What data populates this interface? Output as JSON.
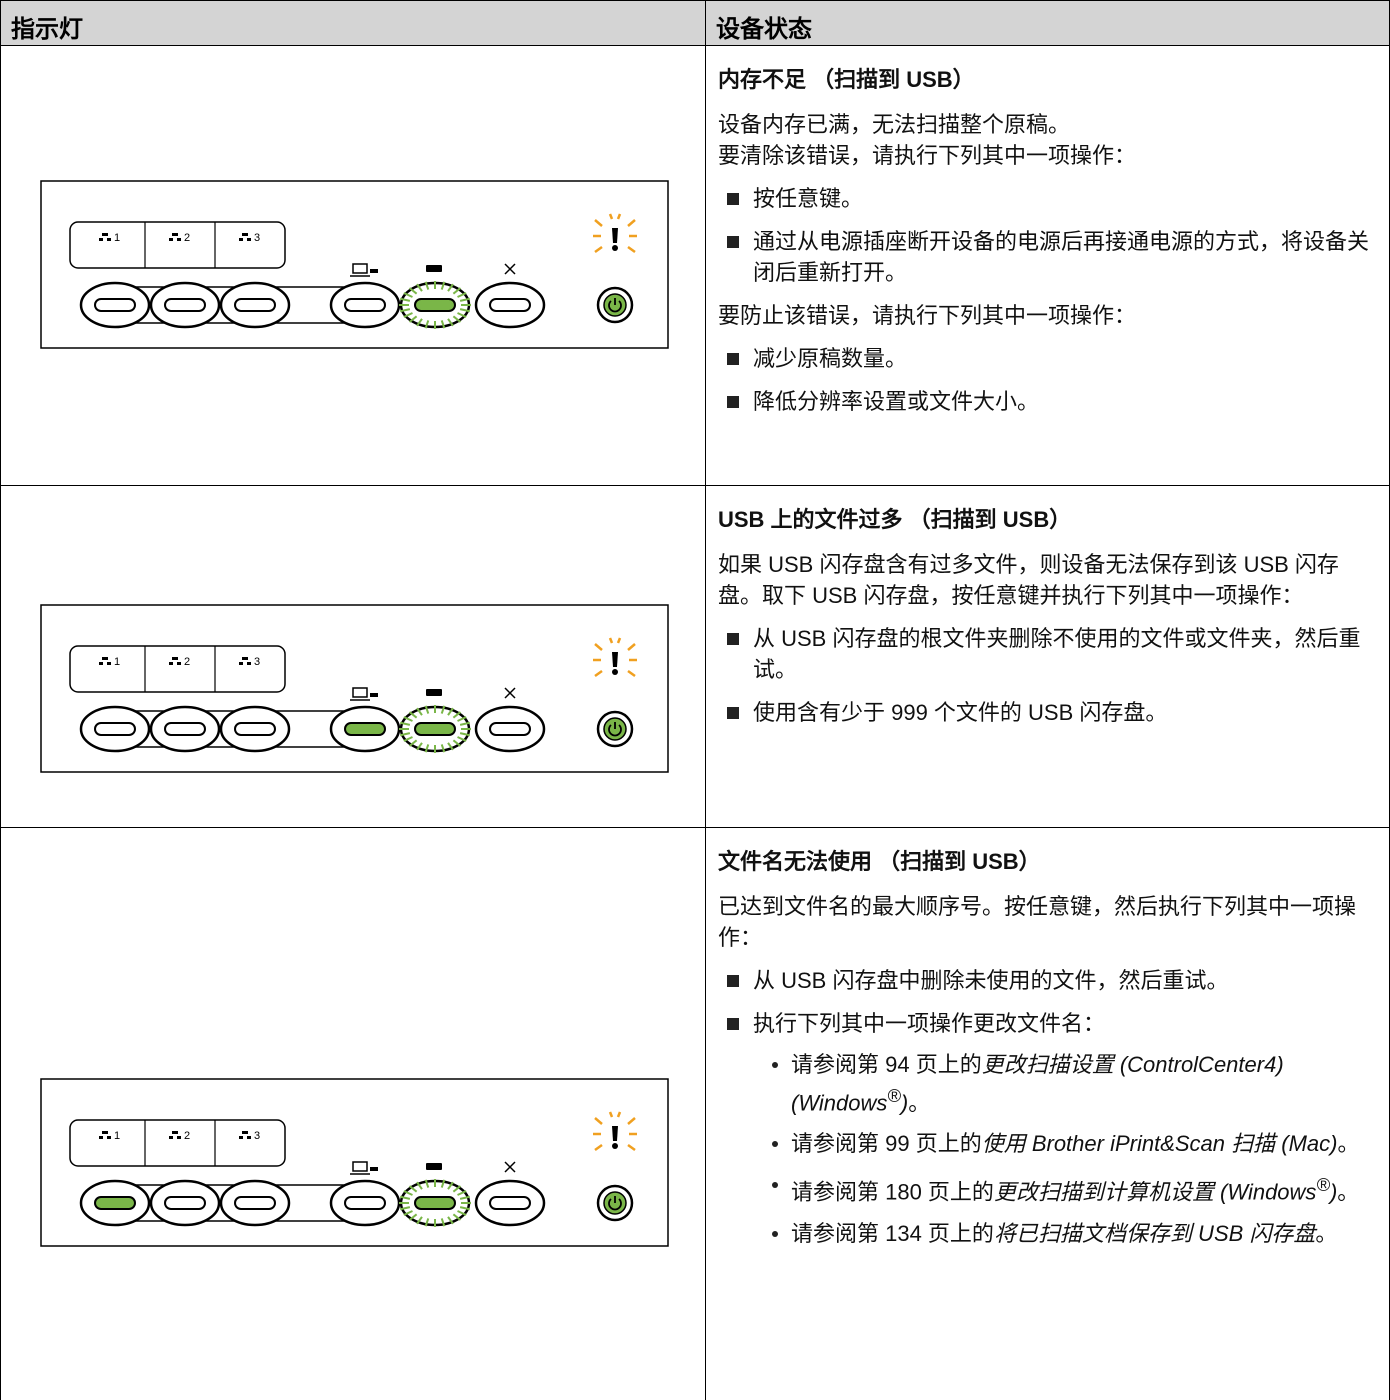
{
  "header": {
    "col1": "指示灯",
    "col2": "设备状态"
  },
  "panel_labels": [
    "1",
    "2",
    "3"
  ],
  "rows": [
    {
      "title": "内存不足 （扫描到 USB）",
      "content": [
        {
          "p": [
            "设备内存已满，无法扫描整个原稿。",
            "要清除该错误，请执行下列其中一项操作："
          ]
        },
        {
          "bullets": [
            {
              "text": "按任意键。"
            },
            {
              "text": "通过从电源插座断开设备的电源后再接通电源的方式，将设备关闭后重新打开。"
            }
          ]
        },
        {
          "p": [
            "要防止该错误，请执行下列其中一项操作："
          ]
        },
        {
          "bullets": [
            {
              "text": "减少原稿数量。"
            },
            {
              "text": "降低分辨率设置或文件大小。"
            }
          ]
        }
      ]
    },
    {
      "title": "USB 上的文件过多 （扫描到 USB）",
      "content": [
        {
          "p": [
            "如果 USB 闪存盘含有过多文件，则设备无法保存到该 USB 闪存盘。取下 USB 闪存盘，按任意键并执行下列其中一项操作："
          ]
        },
        {
          "bullets": [
            {
              "text": "从 USB 闪存盘的根文件夹删除不使用的文件或文件夹，然后重试。"
            },
            {
              "text": "使用含有少于 999 个文件的 USB 闪存盘。"
            }
          ]
        }
      ]
    },
    {
      "title": "文件名无法使用 （扫描到 USB）",
      "content": [
        {
          "p": [
            "已达到文件名的最大顺序号。按任意键，然后执行下列其中一项操作："
          ]
        },
        {
          "bullets": [
            {
              "text": "从 USB 闪存盘中删除未使用的文件，然后重试。"
            },
            {
              "text": "执行下列其中一项操作更改文件名：",
              "items": [
                [
                  {
                    "t": "请参阅第  94 页上的"
                  },
                  {
                    "i": "更改扫描设置 (ControlCenter4) (Windows"
                  },
                  {
                    "sup": "®"
                  },
                  {
                    "i": ")"
                  },
                  {
                    "t": "。"
                  }
                ],
                [
                  {
                    "t": "请参阅第  99 页上的"
                  },
                  {
                    "i": "使用 Brother iPrint&Scan 扫描 (Mac)"
                  },
                  {
                    "t": "。"
                  }
                ],
                [
                  {
                    "t": "请参阅第  180 页上的"
                  },
                  {
                    "i": "更改扫描到计算机设置 (Windows"
                  },
                  {
                    "sup": "®"
                  },
                  {
                    "i": ")"
                  },
                  {
                    "t": "。"
                  }
                ],
                [
                  {
                    "t": "请参阅第  134 页上的"
                  },
                  {
                    "i": "将已扫描文档保存到 USB 闪存盘"
                  },
                  {
                    "t": "。"
                  }
                ]
              ]
            }
          ]
        }
      ]
    }
  ]
}
